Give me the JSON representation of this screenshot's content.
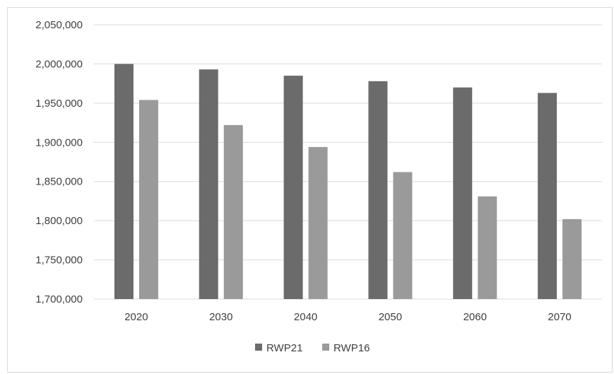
{
  "chart_data": {
    "type": "bar",
    "categories": [
      "2020",
      "2030",
      "2040",
      "2050",
      "2060",
      "2070"
    ],
    "series": [
      {
        "name": "RWP21",
        "color": "#6b6b6b",
        "values": [
          2000000,
          1993000,
          1985000,
          1978000,
          1970000,
          1963000
        ]
      },
      {
        "name": "RWP16",
        "color": "#9a9a9a",
        "values": [
          1954000,
          1922000,
          1894000,
          1862000,
          1831000,
          1802000
        ]
      }
    ],
    "ylim": [
      1700000,
      2050000
    ],
    "yticks": [
      1700000,
      1750000,
      1800000,
      1850000,
      1900000,
      1950000,
      2000000,
      2050000
    ],
    "ytick_labels": [
      "1,700,000",
      "1,750,000",
      "1,800,000",
      "1,850,000",
      "1,900,000",
      "1,950,000",
      "2,000,000",
      "2,050,000"
    ],
    "grid": true,
    "legend": "bottom-center",
    "gridline_color": "#d9d9d9"
  }
}
